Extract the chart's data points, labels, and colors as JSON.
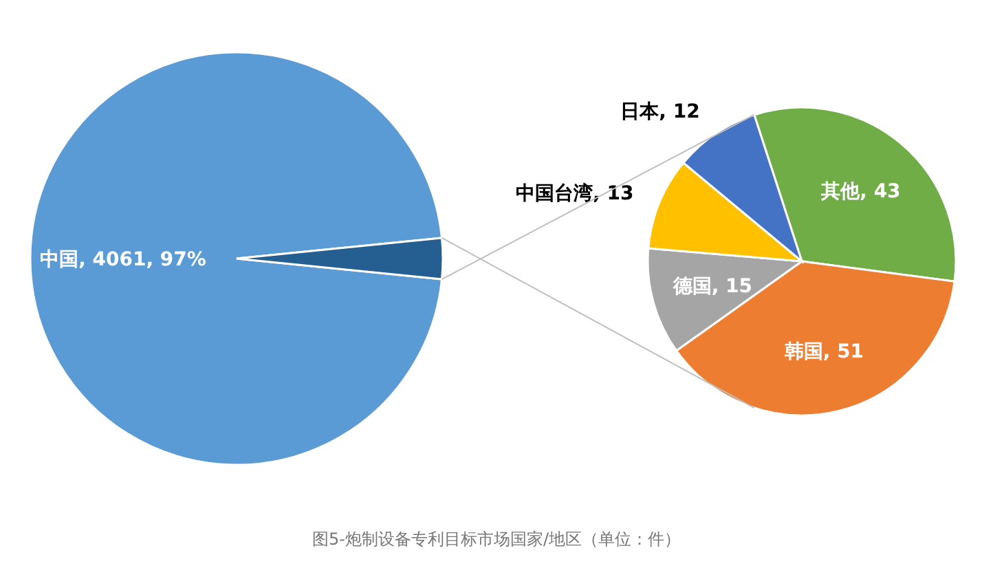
{
  "chart_data": [
    {
      "type": "pie",
      "categories": [
        "中国",
        null
      ],
      "values": [
        4061,
        134
      ],
      "colors": [
        "#5b9bd5",
        "#255e91"
      ],
      "value_labels": [
        ", 4061, 97%",
        null
      ],
      "legend": false
    },
    {
      "type": "pie",
      "categories": [
        "其他",
        "韩国",
        "德国",
        "中国台湾",
        "日本"
      ],
      "values": [
        43,
        51,
        15,
        13,
        12
      ],
      "colors": [
        "#70ad47",
        "#ed7d31",
        "#a5a5a5",
        "#ffc000",
        "#4472c4"
      ],
      "value_labels": [
        ", 43",
        ", 51",
        ", 15",
        ", 13",
        ", 12"
      ],
      "legend": false,
      "annotations": [
        "图5-炮制设备专利目标市场国家/地区（单位：件）"
      ]
    }
  ]
}
